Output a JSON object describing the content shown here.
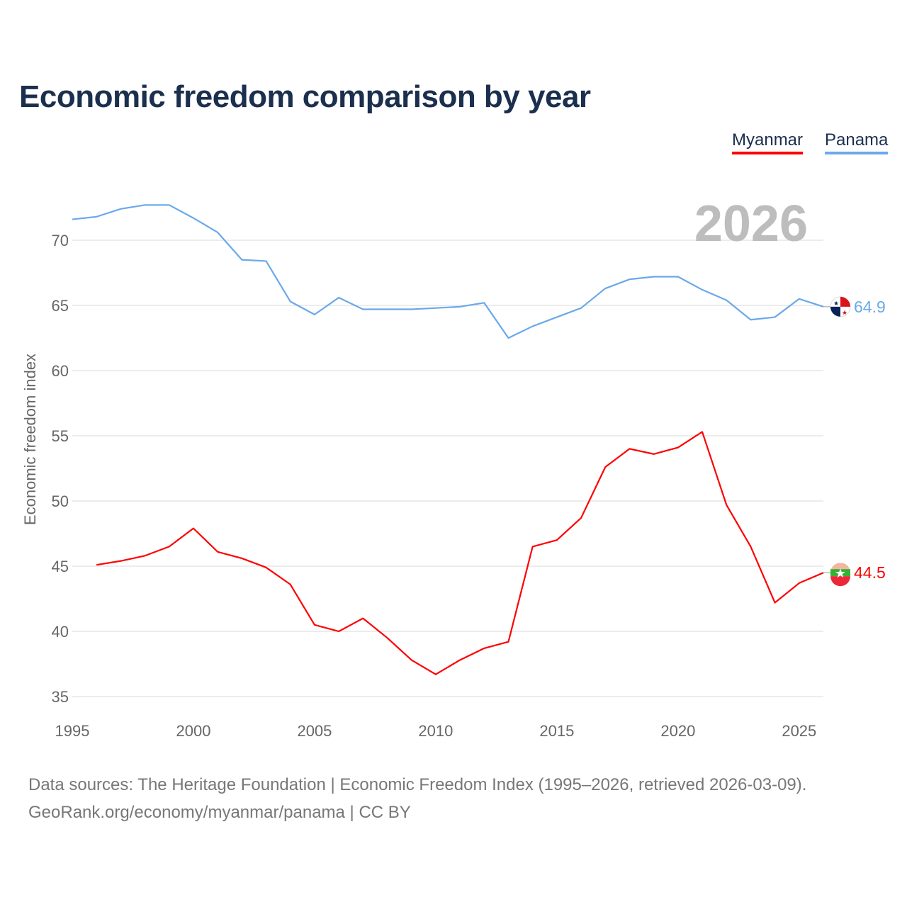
{
  "title": "Economic freedom comparison by year",
  "footer": {
    "line1": "Data sources: The Heritage Foundation | Economic Freedom Index (1995–2026, retrieved 2026-03-09).",
    "line2": "GeoRank.org/economy/myanmar/panama | CC BY"
  },
  "chart_data": {
    "type": "line",
    "title": "Economic freedom comparison by year",
    "ylabel": "Economic freedom index",
    "xlabel": "",
    "xlim": [
      1995,
      2026
    ],
    "ylim": [
      35,
      73
    ],
    "xticks": [
      "1995",
      "2000",
      "2005",
      "2010",
      "2015",
      "2020",
      "2025"
    ],
    "yticks": [
      "35",
      "40",
      "45",
      "50",
      "55",
      "60",
      "65",
      "70"
    ],
    "grid": true,
    "legend_position": "top-right",
    "year_label": "2026",
    "series": [
      {
        "name": "Myanmar",
        "color": "#ff0000",
        "end_label": "44.5",
        "x": [
          1996,
          1997,
          1998,
          1999,
          2000,
          2001,
          2002,
          2003,
          2004,
          2005,
          2006,
          2007,
          2008,
          2009,
          2010,
          2011,
          2012,
          2013,
          2014,
          2015,
          2016,
          2017,
          2018,
          2019,
          2020,
          2021,
          2022,
          2023,
          2024,
          2025,
          2026
        ],
        "values": [
          45.1,
          45.4,
          45.8,
          46.5,
          47.9,
          46.1,
          45.6,
          44.9,
          43.6,
          40.5,
          40.0,
          41.0,
          39.5,
          37.8,
          36.7,
          37.8,
          38.7,
          39.2,
          46.5,
          47.0,
          48.7,
          52.6,
          54.0,
          53.6,
          54.1,
          55.3,
          49.7,
          46.5,
          42.2,
          43.7,
          44.5
        ]
      },
      {
        "name": "Panama",
        "color": "#6aa9e9",
        "end_label": "64.9",
        "x": [
          1995,
          1996,
          1997,
          1998,
          1999,
          2000,
          2001,
          2002,
          2003,
          2004,
          2005,
          2006,
          2007,
          2008,
          2009,
          2010,
          2011,
          2012,
          2013,
          2014,
          2015,
          2016,
          2017,
          2018,
          2019,
          2020,
          2021,
          2022,
          2023,
          2024,
          2025,
          2026
        ],
        "values": [
          71.6,
          71.8,
          72.4,
          72.7,
          72.7,
          71.7,
          70.6,
          68.5,
          68.4,
          65.3,
          64.3,
          65.6,
          64.7,
          64.7,
          64.7,
          64.8,
          64.9,
          65.2,
          62.5,
          63.4,
          64.1,
          64.8,
          66.3,
          67.0,
          67.2,
          67.2,
          66.2,
          65.4,
          63.9,
          64.1,
          65.5,
          64.9
        ]
      }
    ]
  }
}
